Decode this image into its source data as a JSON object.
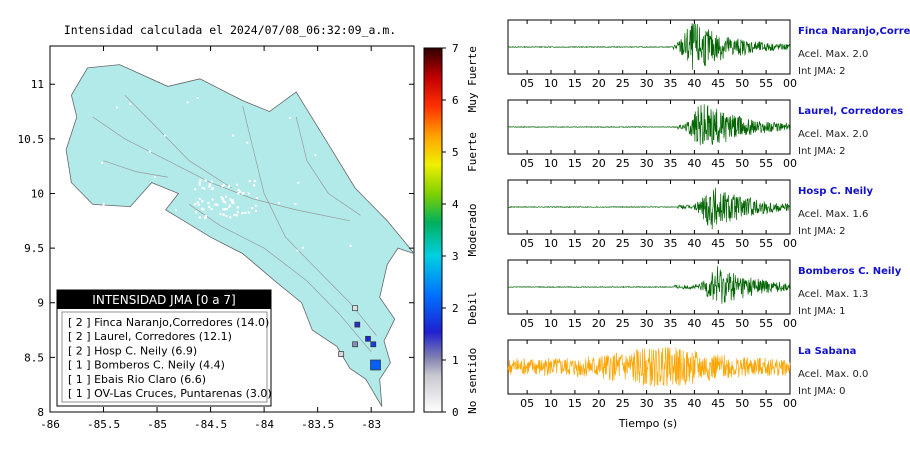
{
  "map": {
    "title": "Intensidad calculada el 2024/07/08_06:32:09_a.m.",
    "x_ticks": [
      "-86",
      "-85.5",
      "-85",
      "-84.5",
      "-84",
      "-83.5",
      "-83"
    ],
    "y_ticks": [
      "11",
      "10.5",
      "10",
      "9.5",
      "9",
      "8.5",
      "8"
    ],
    "xlim": [
      -86,
      -82.6
    ],
    "ylim": [
      8,
      11.35
    ],
    "land_color": "#b2eaea",
    "legend_title": "INTENSIDAD JMA [0 a 7]",
    "legend_items": [
      "[ 2 ] Finca Naranjo,Corredores (14.0)",
      "[ 2 ] Laurel, Corredores (12.1)",
      "[ 2 ] Hosp C. Neily (6.9)",
      "[ 1 ] Bomberos C. Neily (4.4)",
      "[ 1 ] Ebais Rio Claro (6.6)",
      "[ 1 ] OV-Las Cruces, Puntarenas (3.0)"
    ],
    "stations": [
      {
        "lon": -83.15,
        "lat": 8.95,
        "intensity": 0.4
      },
      {
        "lon": -83.13,
        "lat": 8.8,
        "intensity": 1.5
      },
      {
        "lon": -83.03,
        "lat": 8.67,
        "intensity": 1.6
      },
      {
        "lon": -82.98,
        "lat": 8.62,
        "intensity": 1.8
      },
      {
        "lon": -83.15,
        "lat": 8.62,
        "intensity": 1.0
      },
      {
        "lon": -83.28,
        "lat": 8.53,
        "intensity": 0.5
      },
      {
        "lon": -82.96,
        "lat": 8.43,
        "intensity": 2.1
      }
    ]
  },
  "colorbar": {
    "ticks": [
      "0",
      "1",
      "2",
      "3",
      "4",
      "5",
      "6",
      "7"
    ],
    "labels": [
      "No sentido",
      "Debil",
      "Moderado",
      "Fuerte",
      "Muy Fuerte"
    ],
    "range": [
      0,
      7
    ]
  },
  "chart_data": {
    "type": "line",
    "xlabel": "Tiempo (s)",
    "x_ticks": [
      "05",
      "10",
      "15",
      "20",
      "25",
      "30",
      "35",
      "40",
      "45",
      "50",
      "55",
      "00"
    ],
    "xlim": [
      1,
      60
    ],
    "series": [
      {
        "name": "Finca Naranjo,Corredores",
        "accel_label": "Acel. Max. 2.0",
        "int_label": "Int JMA: 2",
        "color": "#006400",
        "onset": 35.5,
        "peak_t": 40,
        "amp": 1.0
      },
      {
        "name": "Laurel, Corredores",
        "accel_label": "Acel. Max. 2.0",
        "int_label": "Int JMA: 2",
        "color": "#006400",
        "onset": 36.5,
        "peak_t": 42,
        "amp": 1.0
      },
      {
        "name": "Hosp C. Neily",
        "accel_label": "Acel. Max. 1.6",
        "int_label": "Int JMA: 2",
        "color": "#006400",
        "onset": 36.5,
        "peak_t": 44,
        "amp": 0.9
      },
      {
        "name": "Bomberos C. Neily",
        "accel_label": "Acel. Max. 1.3",
        "int_label": "Int JMA: 1",
        "color": "#006400",
        "onset": 35.8,
        "peak_t": 45,
        "amp": 0.85
      },
      {
        "name": "La Sabana",
        "accel_label": "Acel. Max. 0.0",
        "int_label": "Int JMA: 0",
        "color": "#ffa500",
        "onset": 1,
        "peak_t": 33,
        "amp": 0.7
      }
    ]
  }
}
